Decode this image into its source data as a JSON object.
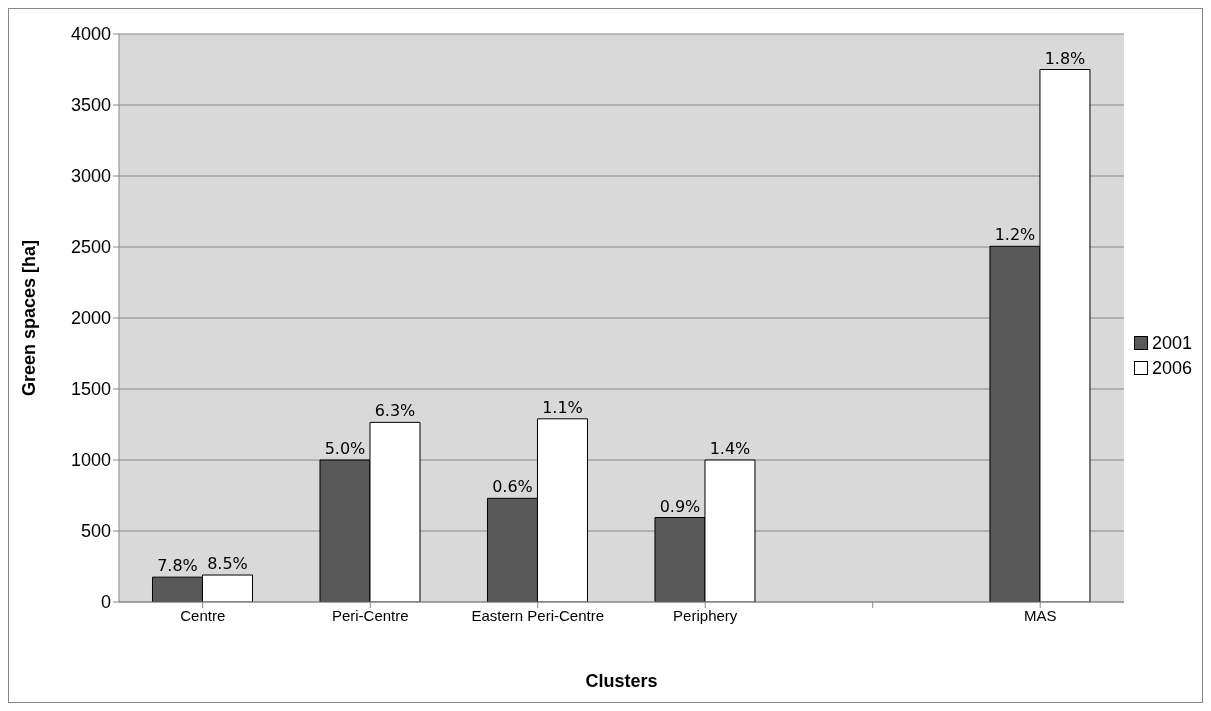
{
  "chart_data": {
    "type": "bar",
    "xlabel": "Clusters",
    "ylabel": "Green spaces [ha]",
    "categories": [
      "Centre",
      "Peri-Centre",
      "Eastern Peri-Centre",
      "Periphery",
      null,
      "MAS"
    ],
    "series": [
      {
        "name": "2001",
        "color": "#595959",
        "values": [
          175,
          1000,
          730,
          595,
          null,
          2505
        ]
      },
      {
        "name": "2006",
        "color": "#ffffff",
        "values": [
          190,
          1265,
          1290,
          1000,
          null,
          3750
        ]
      }
    ],
    "annotations": [
      {
        "text": "7.8%",
        "x": "Centre",
        "y": 175
      },
      {
        "text": "8.5%",
        "x": "Centre",
        "y": 190
      },
      {
        "text": "5.0%",
        "x": "Peri-Centre",
        "y": 1000
      },
      {
        "text": "6.3%",
        "x": "Peri-Centre",
        "y": 1265
      },
      {
        "text": "0.6%",
        "x": "Eastern Peri-Centre",
        "y": 730
      },
      {
        "text": "1.1%",
        "x": "Eastern Peri-Centre",
        "y": 1290
      },
      {
        "text": "0.9%",
        "x": "Periphery",
        "y": 595
      },
      {
        "text": "1.4%",
        "x": "Periphery",
        "y": 1000
      },
      {
        "text": "1.2%",
        "x": "MAS",
        "y": 2505
      },
      {
        "text": "1.8%",
        "x": "MAS",
        "y": 3750
      }
    ],
    "ylim": [
      0,
      4000
    ],
    "yticks": [
      0,
      500,
      1000,
      1500,
      2000,
      2500,
      3000,
      3500,
      4000
    ],
    "grid": "y",
    "legend": "right"
  }
}
